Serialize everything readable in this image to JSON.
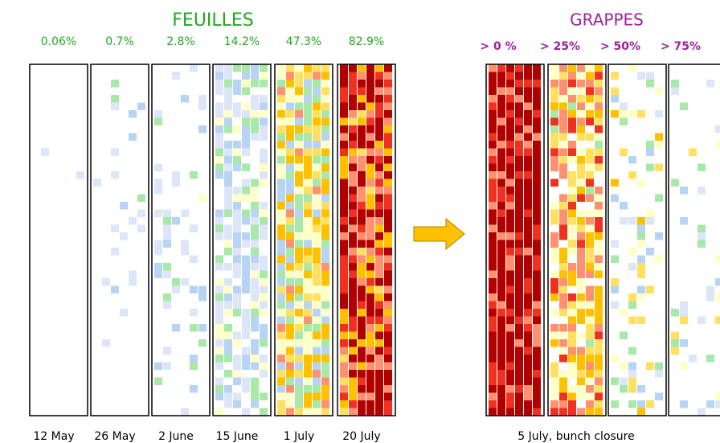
{
  "feuilles": {
    "title": "FEUILLES",
    "panels": [
      {
        "percent": "0.06%",
        "date": "12 May"
      },
      {
        "percent": "0.7%",
        "date": "26 May"
      },
      {
        "percent": "2.8%",
        "date": "2 June"
      },
      {
        "percent": "14.2%",
        "date": "15 June"
      },
      {
        "percent": "47.3%",
        "date": "1 July"
      },
      {
        "percent": "82.9%",
        "date": "20 July"
      }
    ]
  },
  "grappes": {
    "title": "GRAPPES",
    "panels": [
      {
        "label": "> 0 %"
      },
      {
        "label": "> 25%"
      },
      {
        "label": "> 50%"
      },
      {
        "label": "> 75%"
      }
    ],
    "caption": "5 July, bunch closure"
  }
}
